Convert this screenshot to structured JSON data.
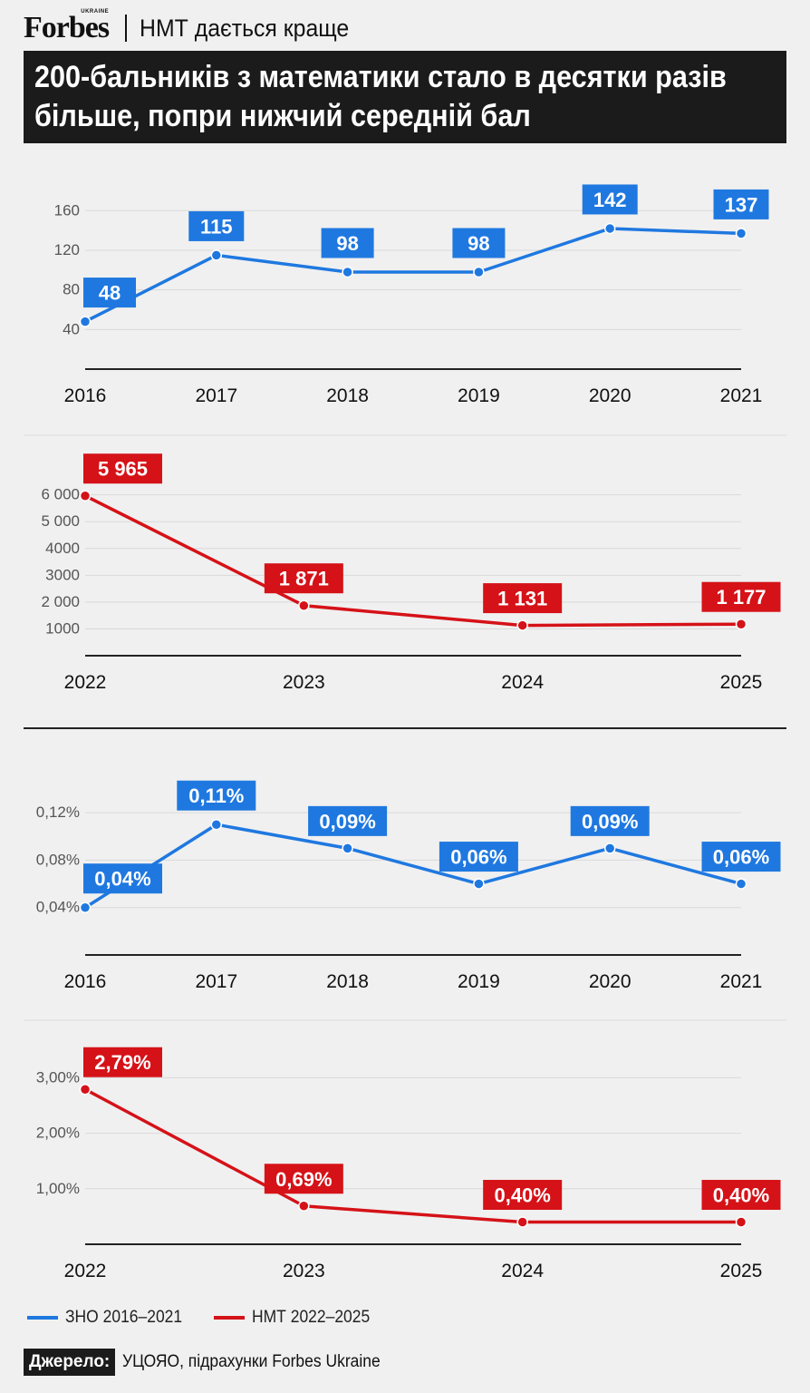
{
  "header": {
    "logo": "Forbes",
    "logo_sub": "UKRAINE",
    "subtitle": "НМТ дається краще"
  },
  "title": "200-бальників з математики стало в десятки разів більше, попри нижчий середній бал",
  "colors": {
    "zno": "#1f78e0",
    "nmt": "#d51218",
    "dark": "#1b1b1b"
  },
  "chart_data": [
    {
      "type": "line",
      "series": [
        {
          "name": "ЗНО 2016–2021",
          "values": [
            48,
            115,
            98,
            98,
            142,
            137
          ]
        }
      ],
      "x": [
        "2016",
        "2017",
        "2018",
        "2019",
        "2020",
        "2021"
      ],
      "data_labels": [
        "48",
        "115",
        "98",
        "98",
        "142",
        "137"
      ],
      "yticks": [
        40,
        80,
        120,
        160
      ],
      "ytick_labels": [
        "40",
        "80",
        "120",
        "160"
      ],
      "ylim": [
        0,
        185
      ],
      "grid": true
    },
    {
      "type": "line",
      "series": [
        {
          "name": "НМТ 2022–2025",
          "values": [
            5965,
            1871,
            1131,
            1177
          ]
        }
      ],
      "x": [
        "2022",
        "2023",
        "2024",
        "2025"
      ],
      "data_labels": [
        "5 965",
        "1 871",
        "1 131",
        "1 177"
      ],
      "yticks": [
        1000,
        2000,
        3000,
        4000,
        5000,
        6000
      ],
      "ytick_labels": [
        "1000",
        "2 000",
        "3000",
        "4000",
        "5 000",
        "6 000"
      ],
      "ylim": [
        0,
        6700
      ],
      "grid": true
    },
    {
      "type": "line",
      "series": [
        {
          "name": "ЗНО 2016–2021",
          "values": [
            0.04,
            0.11,
            0.09,
            0.06,
            0.09,
            0.06
          ]
        }
      ],
      "x": [
        "2016",
        "2017",
        "2018",
        "2019",
        "2020",
        "2021"
      ],
      "data_labels": [
        "0,04%",
        "0,11%",
        "0,09%",
        "0,06%",
        "0,09%",
        "0,06%"
      ],
      "yticks": [
        0.04,
        0.08,
        0.12
      ],
      "ytick_labels": [
        "0,04%",
        "0,08%",
        "0,12%"
      ],
      "ylim": [
        0,
        0.14
      ],
      "grid": true
    },
    {
      "type": "line",
      "series": [
        {
          "name": "НМТ 2022–2025",
          "values": [
            2.79,
            0.69,
            0.4,
            0.4
          ]
        }
      ],
      "x": [
        "2022",
        "2023",
        "2024",
        "2025"
      ],
      "data_labels": [
        "2,79%",
        "0,69%",
        "0,40%",
        "0,40%"
      ],
      "yticks": [
        1,
        2,
        3
      ],
      "ytick_labels": [
        "1,00%",
        "2,00%",
        "3,00%"
      ],
      "ylim": [
        0,
        3.3
      ],
      "grid": true
    }
  ],
  "legend": [
    {
      "label": "ЗНО 2016–2021",
      "color": "#1f78e0"
    },
    {
      "label": "НМТ 2022–2025",
      "color": "#d51218"
    }
  ],
  "source": {
    "label": "Джерело:",
    "text": "УЦОЯО, підрахунки Forbes Ukraine"
  }
}
